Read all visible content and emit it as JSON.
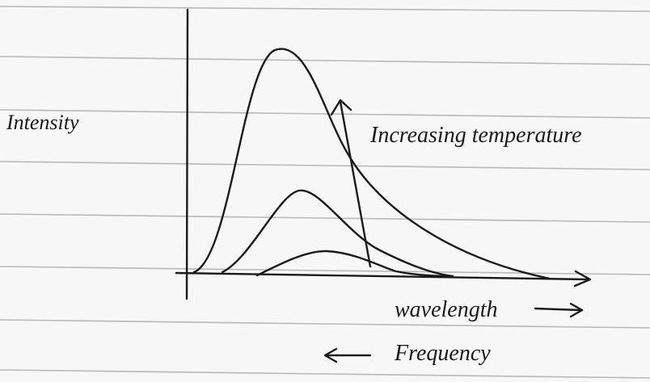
{
  "labels": {
    "y_axis": "Intensity",
    "annotation": "Increasing temperature",
    "x_axis": "wavelength",
    "x_axis_secondary": "Frequency"
  }
}
